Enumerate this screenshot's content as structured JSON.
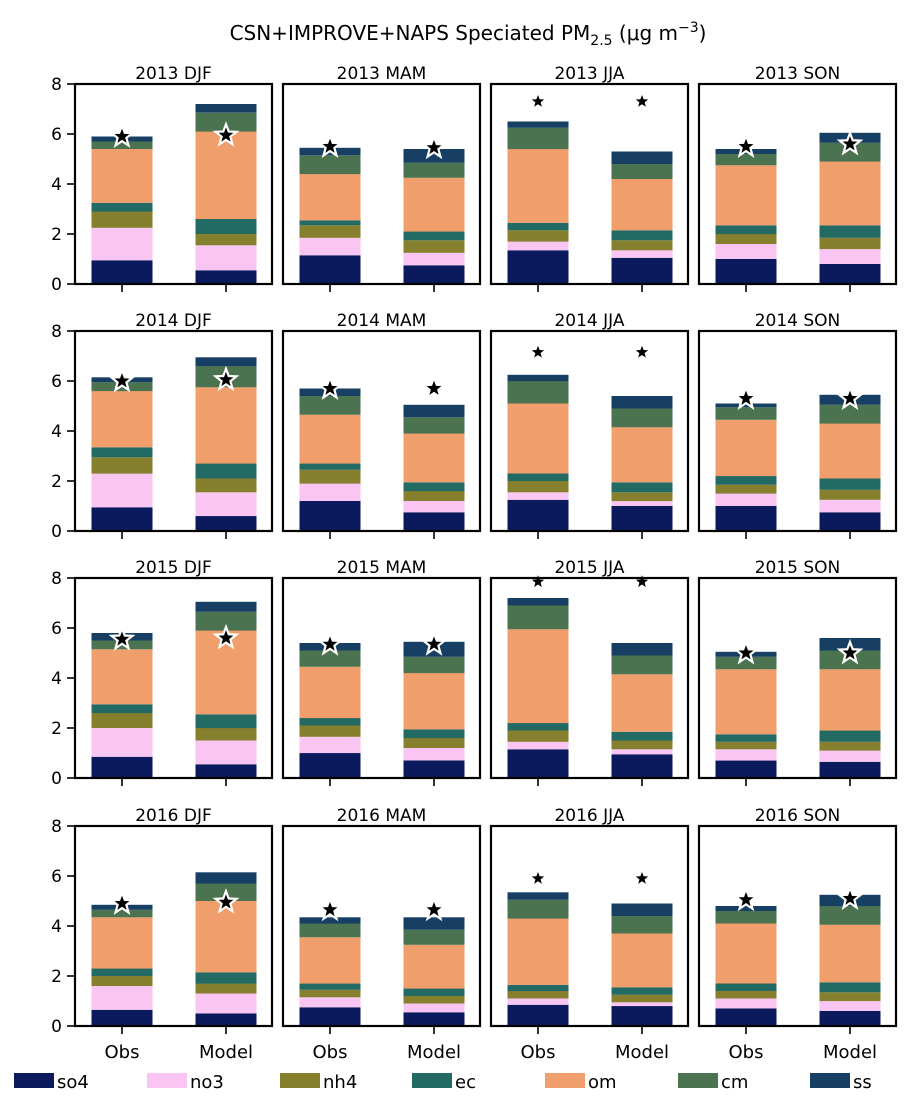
{
  "figure": {
    "title_main": "CSN+IMPROVE+NAPS Speciated PM",
    "title_sub": "2.5",
    "title_units": " (μg m",
    "title_exp": "−3",
    "title_close": ")"
  },
  "chart_data": {
    "type": "bar",
    "stacked": true,
    "categories": [
      "Obs",
      "Model"
    ],
    "ylim": [
      0,
      8
    ],
    "yticks": [
      "0",
      "2",
      "4",
      "6",
      "8"
    ],
    "grid": false,
    "legend_placement": "bottom",
    "species": [
      {
        "name": "so4",
        "color": "#0a1a5c"
      },
      {
        "name": "no3",
        "color": "#f9c6f3"
      },
      {
        "name": "nh4",
        "color": "#857f2e"
      },
      {
        "name": "ec",
        "color": "#226a63"
      },
      {
        "name": "om",
        "color": "#f09e6c"
      },
      {
        "name": "cm",
        "color": "#4c7350"
      },
      {
        "name": "ss",
        "color": "#163f63"
      }
    ],
    "panels": [
      {
        "title": "2013 DJF",
        "obs": [
          0.95,
          1.3,
          0.65,
          0.35,
          2.15,
          0.3,
          0.2
        ],
        "model": [
          0.55,
          1.0,
          0.45,
          0.6,
          3.5,
          0.75,
          0.35
        ],
        "star_obs": 5.9,
        "star_model": 5.95,
        "star_outlined": true
      },
      {
        "title": "2013 MAM",
        "obs": [
          1.15,
          0.7,
          0.5,
          0.2,
          1.85,
          0.75,
          0.3
        ],
        "model": [
          0.75,
          0.5,
          0.5,
          0.35,
          2.15,
          0.6,
          0.55
        ],
        "star_obs": 5.5,
        "star_model": 5.45,
        "star_outlined": true
      },
      {
        "title": "2013 JJA",
        "obs": [
          1.35,
          0.35,
          0.45,
          0.3,
          2.95,
          0.85,
          0.25
        ],
        "model": [
          1.05,
          0.3,
          0.4,
          0.4,
          2.05,
          0.6,
          0.5
        ],
        "star_obs": 7.3,
        "star_model": 7.3,
        "star_outlined": false
      },
      {
        "title": "2013 SON",
        "obs": [
          1.0,
          0.6,
          0.4,
          0.35,
          2.4,
          0.45,
          0.2
        ],
        "model": [
          0.8,
          0.6,
          0.45,
          0.5,
          2.55,
          0.75,
          0.4
        ],
        "star_obs": 5.5,
        "star_model": 5.6,
        "star_outlined": true
      },
      {
        "title": "2014 DJF",
        "obs": [
          0.95,
          1.35,
          0.65,
          0.4,
          2.25,
          0.35,
          0.2
        ],
        "model": [
          0.6,
          0.95,
          0.55,
          0.6,
          3.05,
          0.85,
          0.35
        ],
        "star_obs": 6.0,
        "star_model": 6.05,
        "star_outlined": true
      },
      {
        "title": "2014 MAM",
        "obs": [
          1.2,
          0.7,
          0.55,
          0.25,
          1.95,
          0.75,
          0.3
        ],
        "model": [
          0.75,
          0.45,
          0.4,
          0.35,
          1.95,
          0.65,
          0.5
        ],
        "star_obs": 5.7,
        "star_model": 5.7,
        "star_outlined": true
      },
      {
        "title": "2014 JJA",
        "obs": [
          1.25,
          0.3,
          0.45,
          0.3,
          2.8,
          0.9,
          0.25
        ],
        "model": [
          1.0,
          0.2,
          0.35,
          0.4,
          2.2,
          0.75,
          0.5
        ],
        "star_obs": 7.15,
        "star_model": 7.15,
        "star_outlined": false
      },
      {
        "title": "2014 SON",
        "obs": [
          1.0,
          0.5,
          0.35,
          0.35,
          2.25,
          0.5,
          0.15
        ],
        "model": [
          0.75,
          0.5,
          0.4,
          0.45,
          2.2,
          0.75,
          0.4
        ],
        "star_obs": 5.3,
        "star_model": 5.3,
        "star_outlined": true
      },
      {
        "title": "2015 DJF",
        "obs": [
          0.85,
          1.15,
          0.6,
          0.35,
          2.2,
          0.35,
          0.3
        ],
        "model": [
          0.55,
          0.95,
          0.5,
          0.55,
          3.35,
          0.75,
          0.4
        ],
        "star_obs": 5.55,
        "star_model": 5.6,
        "star_outlined": true
      },
      {
        "title": "2015 MAM",
        "obs": [
          1.0,
          0.65,
          0.45,
          0.3,
          2.05,
          0.65,
          0.3
        ],
        "model": [
          0.7,
          0.5,
          0.4,
          0.35,
          2.25,
          0.65,
          0.6
        ],
        "star_obs": 5.35,
        "star_model": 5.35,
        "star_outlined": true
      },
      {
        "title": "2015 JJA",
        "obs": [
          1.15,
          0.3,
          0.45,
          0.3,
          3.75,
          0.95,
          0.3
        ],
        "model": [
          0.95,
          0.2,
          0.35,
          0.35,
          2.3,
          0.75,
          0.5
        ],
        "star_obs": 7.85,
        "star_model": 7.85,
        "star_outlined": false
      },
      {
        "title": "2015 SON",
        "obs": [
          0.7,
          0.45,
          0.3,
          0.3,
          2.6,
          0.5,
          0.2
        ],
        "model": [
          0.65,
          0.45,
          0.35,
          0.45,
          2.45,
          0.75,
          0.5
        ],
        "star_obs": 5.0,
        "star_model": 5.0,
        "star_outlined": true
      },
      {
        "title": "2016 DJF",
        "obs": [
          0.65,
          0.95,
          0.4,
          0.3,
          2.05,
          0.3,
          0.2
        ],
        "model": [
          0.5,
          0.8,
          0.4,
          0.45,
          2.85,
          0.7,
          0.45
        ],
        "star_obs": 4.9,
        "star_model": 4.95,
        "star_outlined": true
      },
      {
        "title": "2016 MAM",
        "obs": [
          0.75,
          0.4,
          0.3,
          0.25,
          1.85,
          0.55,
          0.25
        ],
        "model": [
          0.55,
          0.35,
          0.3,
          0.3,
          1.75,
          0.6,
          0.5
        ],
        "star_obs": 4.65,
        "star_model": 4.65,
        "star_outlined": true
      },
      {
        "title": "2016 JJA",
        "obs": [
          0.85,
          0.25,
          0.3,
          0.25,
          2.65,
          0.75,
          0.3
        ],
        "model": [
          0.8,
          0.15,
          0.3,
          0.3,
          2.15,
          0.7,
          0.5
        ],
        "star_obs": 5.9,
        "star_model": 5.9,
        "star_outlined": false
      },
      {
        "title": "2016 SON",
        "obs": [
          0.7,
          0.4,
          0.3,
          0.3,
          2.4,
          0.5,
          0.2
        ],
        "model": [
          0.6,
          0.4,
          0.35,
          0.4,
          2.3,
          0.75,
          0.45
        ],
        "star_obs": 5.05,
        "star_model": 5.1,
        "star_outlined": true
      }
    ]
  }
}
